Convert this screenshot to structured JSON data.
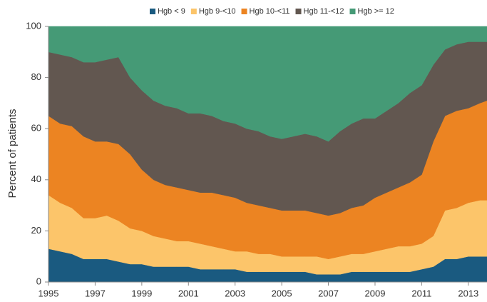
{
  "chart_data": {
    "type": "stacked-area",
    "y_label": "Percent of patients",
    "x": [
      1995,
      1995.5,
      1996,
      1996.5,
      1997,
      1997.5,
      1998,
      1998.5,
      1999,
      1999.5,
      2000,
      2000.5,
      2001,
      2001.5,
      2002,
      2002.5,
      2003,
      2003.5,
      2004,
      2004.5,
      2005,
      2005.5,
      2006,
      2006.5,
      2007,
      2007.5,
      2008,
      2008.5,
      2009,
      2009.5,
      2010,
      2010.5,
      2011,
      2011.5,
      2012,
      2012.5,
      2013,
      2013.5,
      2013.8
    ],
    "series": [
      {
        "name": "Hgb < 9",
        "color": "#1a5a80",
        "values": [
          13,
          12,
          11,
          9,
          9,
          9,
          8,
          7,
          7,
          6,
          6,
          6,
          6,
          5,
          5,
          5,
          5,
          4,
          4,
          4,
          4,
          4,
          4,
          3,
          3,
          3,
          4,
          4,
          4,
          4,
          4,
          4,
          5,
          6,
          9,
          9,
          10,
          10,
          10
        ]
      },
      {
        "name": "Hgb 9-<10",
        "color": "#fcc56a",
        "values": [
          21,
          19,
          18,
          16,
          16,
          17,
          16,
          14,
          13,
          12,
          11,
          10,
          10,
          10,
          9,
          8,
          7,
          8,
          7,
          7,
          6,
          6,
          6,
          7,
          6,
          7,
          7,
          7,
          8,
          9,
          10,
          10,
          10,
          12,
          19,
          20,
          21,
          22,
          22
        ]
      },
      {
        "name": "Hgb 10-<11",
        "color": "#ec8422",
        "values": [
          31,
          31,
          32,
          32,
          30,
          29,
          30,
          29,
          24,
          22,
          21,
          21,
          20,
          20,
          21,
          21,
          21,
          19,
          19,
          18,
          18,
          18,
          18,
          17,
          17,
          17,
          18,
          19,
          21,
          22,
          23,
          25,
          27,
          37,
          37,
          38,
          37,
          38,
          39
        ]
      },
      {
        "name": "Hgb 11-<12",
        "color": "#625750",
        "values": [
          25,
          27,
          27,
          29,
          31,
          32,
          34,
          30,
          31,
          31,
          31,
          31,
          30,
          31,
          30,
          29,
          29,
          29,
          29,
          28,
          28,
          29,
          30,
          30,
          29,
          32,
          33,
          34,
          31,
          32,
          33,
          35,
          35,
          30,
          26,
          26,
          26,
          24,
          23
        ]
      },
      {
        "name": "Hgb >= 12",
        "color": "#459a76",
        "values": [
          10,
          11,
          12,
          14,
          14,
          13,
          12,
          20,
          25,
          29,
          31,
          32,
          34,
          34,
          35,
          37,
          38,
          40,
          41,
          43,
          44,
          43,
          42,
          43,
          45,
          41,
          38,
          36,
          36,
          33,
          30,
          26,
          23,
          15,
          9,
          7,
          6,
          6,
          6
        ]
      }
    ],
    "xlim": [
      1995,
      2013.8
    ],
    "xticks": [
      1995,
      1997,
      1999,
      2001,
      2003,
      2005,
      2007,
      2009,
      2011,
      2013
    ],
    "ylim": [
      0,
      100
    ],
    "yticks": [
      0,
      20,
      40,
      60,
      80,
      100
    ],
    "legend": "top"
  }
}
